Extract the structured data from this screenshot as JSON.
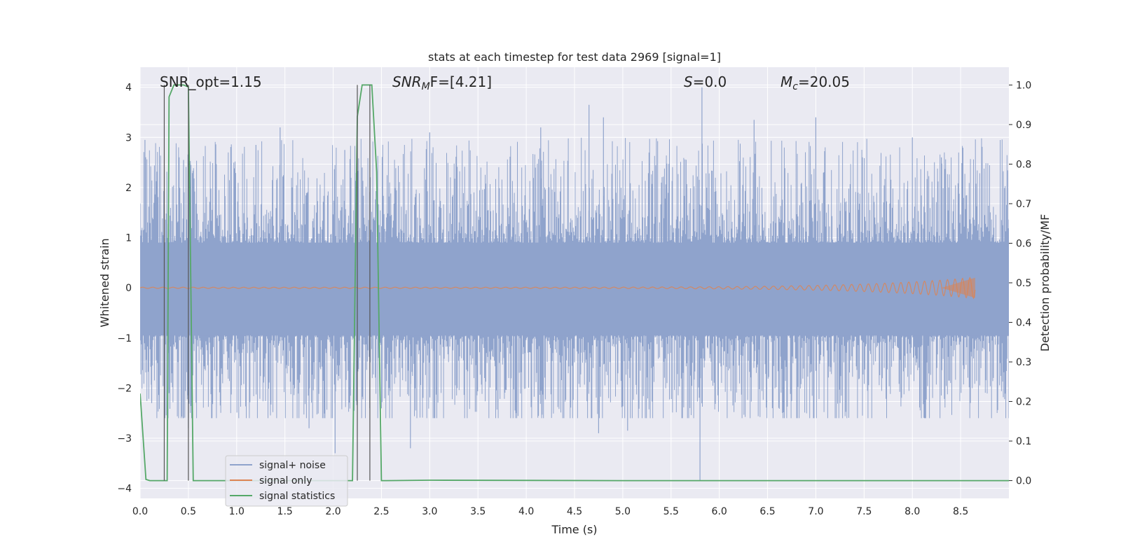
{
  "chart_data": {
    "type": "line",
    "title": "stats at each timestep for test data 2969 [signal=1]",
    "xlabel": "Time (s)",
    "ylabel": "Whitened strain",
    "y2label": "Detection probability/MF",
    "xlim": [
      0.0,
      9.0
    ],
    "ylim": [
      -4.2,
      4.4
    ],
    "y2lim": [
      -0.045,
      1.045
    ],
    "xticks": [
      "0.0",
      "0.5",
      "1.0",
      "1.5",
      "2.0",
      "2.5",
      "3.0",
      "3.5",
      "4.0",
      "4.5",
      "5.0",
      "5.5",
      "6.0",
      "6.5",
      "7.0",
      "7.5",
      "8.0",
      "8.5"
    ],
    "yticks": [
      "−4",
      "−3",
      "−2",
      "−1",
      "0",
      "1",
      "2",
      "3",
      "4"
    ],
    "y2ticks": [
      "0.0",
      "0.1",
      "0.2",
      "0.3",
      "0.4",
      "0.5",
      "0.6",
      "0.7",
      "0.8",
      "0.9",
      "1.0"
    ],
    "grid": true,
    "legend_position": "lower-left",
    "legend": [
      "signal+ noise",
      "signal only",
      "signal statistics"
    ],
    "colors": {
      "background": "#eaeaf2",
      "grid": "#ffffff",
      "noise": "#8fa3cc",
      "signal": "#dd8452",
      "stats": "#55a868",
      "vline": "#555555"
    },
    "annotations": {
      "snr_opt": "SNR_opt=1.15",
      "snr_mf_label": "SNR",
      "snr_mf_sub": "M",
      "snr_mf_rest": "F=[4.21]",
      "s_label": "S",
      "s_rest": "=0.0",
      "mc_label": "M",
      "mc_sub": "c",
      "mc_rest": "=20.05"
    },
    "series": [
      {
        "name": "signal+ noise",
        "kind": "noise",
        "x_range": [
          0.0,
          9.0
        ],
        "band": [
          -0.95,
          0.9
        ],
        "extremes": [
          {
            "t": 0.05,
            "y": 2.95
          },
          {
            "t": 0.12,
            "y": -2.3
          },
          {
            "t": 0.3,
            "y": -2.1
          },
          {
            "t": 0.45,
            "y": 2.55
          },
          {
            "t": 0.5,
            "y": -2.8
          },
          {
            "t": 1.2,
            "y": 2.85
          },
          {
            "t": 1.45,
            "y": 3.2
          },
          {
            "t": 1.75,
            "y": -2.8
          },
          {
            "t": 2.02,
            "y": -3.3
          },
          {
            "t": 2.12,
            "y": 2.75
          },
          {
            "t": 2.3,
            "y": 2.4
          },
          {
            "t": 2.8,
            "y": -3.2
          },
          {
            "t": 3.0,
            "y": 3.1
          },
          {
            "t": 4.15,
            "y": 3.2
          },
          {
            "t": 4.65,
            "y": 3.65
          },
          {
            "t": 4.75,
            "y": -2.9
          },
          {
            "t": 4.8,
            "y": 3.4
          },
          {
            "t": 5.05,
            "y": -2.85
          },
          {
            "t": 5.82,
            "y": 4.0
          },
          {
            "t": 5.8,
            "y": -3.85
          },
          {
            "t": 6.36,
            "y": 3.35
          },
          {
            "t": 6.55,
            "y": -2.4
          },
          {
            "t": 7.0,
            "y": 3.4
          },
          {
            "t": 8.0,
            "y": 3.0
          },
          {
            "t": 8.3,
            "y": 2.6
          }
        ]
      },
      {
        "name": "signal only",
        "kind": "chirp",
        "x_range": [
          0.0,
          8.65
        ],
        "amplitude_end": 0.2
      },
      {
        "name": "signal statistics",
        "kind": "stats",
        "axis": "y2",
        "x": [
          0.0,
          0.06,
          0.1,
          0.15,
          0.24,
          0.28,
          0.3,
          0.35,
          0.4,
          0.45,
          0.5,
          0.55,
          0.6,
          1.0,
          2.0,
          2.15,
          2.2,
          2.25,
          2.3,
          2.35,
          2.4,
          2.45,
          2.5,
          2.55,
          3.0,
          5.0,
          9.0
        ],
        "y": [
          0.22,
          0.003,
          0.0,
          0.0,
          0.0,
          0.0,
          0.97,
          1.0,
          1.0,
          1.0,
          0.995,
          0.0,
          0.0,
          0.0,
          0.0,
          0.0,
          0.0,
          0.92,
          1.0,
          1.0,
          1.0,
          0.78,
          0.0,
          0.0,
          0.001,
          0.0,
          0.0
        ]
      }
    ],
    "vlines": [
      0.25,
      0.5,
      2.25,
      2.38
    ]
  }
}
